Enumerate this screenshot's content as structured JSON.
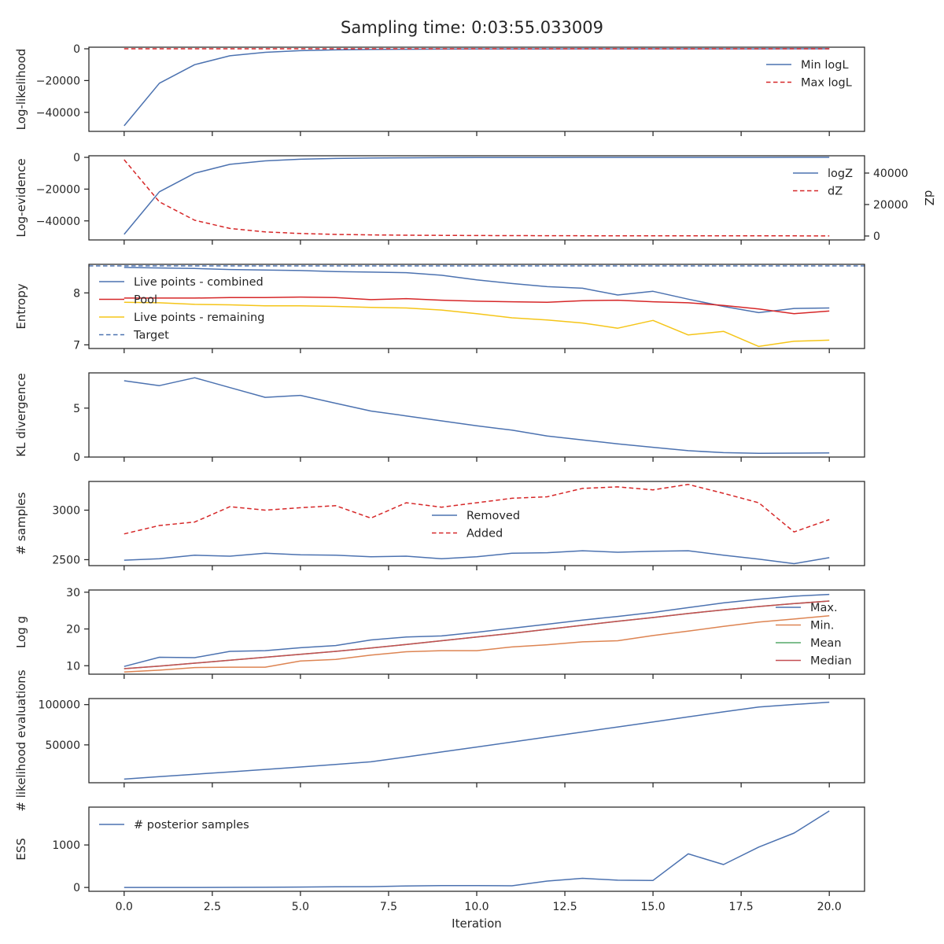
{
  "figure": {
    "title": "Sampling time: 0:03:55.033009",
    "xlabel": "Iteration",
    "xlim": [
      -1,
      21
    ],
    "xticks": [
      0,
      2.5,
      5,
      7.5,
      10,
      12.5,
      15,
      17.5,
      20
    ],
    "xtick_labels": [
      "0.0",
      "2.5",
      "5.0",
      "7.5",
      "10.0",
      "12.5",
      "15.0",
      "17.5",
      "20.0"
    ]
  },
  "colors": {
    "blue": "#4c72b0",
    "red": "#d62728",
    "yellow": "#f5c518",
    "orange": "#dd8452",
    "green": "#55a868",
    "brown": "#c44e52",
    "axis": "#262626"
  },
  "chart_data": [
    {
      "id": "loglikelihood",
      "type": "line",
      "ylabel": "Log-likelihood",
      "ylim": [
        -52000,
        1000
      ],
      "yticks": [
        0,
        -20000,
        -40000
      ],
      "ytick_labels": [
        "0",
        "−20000",
        "−40000"
      ],
      "legend_pos": "right-top",
      "x": [
        0,
        1,
        2,
        3,
        4,
        5,
        6,
        7,
        8,
        9,
        10,
        11,
        12,
        13,
        14,
        15,
        16,
        17,
        18,
        19,
        20
      ],
      "series": [
        {
          "name": "Min logL",
          "style": "solid",
          "color": "blue",
          "values": [
            -48500,
            -21700,
            -10000,
            -4400,
            -2200,
            -1200,
            -700,
            -450,
            -300,
            -200,
            -150,
            -110,
            -80,
            -60,
            -50,
            -40,
            -30,
            -25,
            -20,
            -15,
            -12
          ]
        },
        {
          "name": "Max logL",
          "style": "dashed",
          "color": "red",
          "values": [
            -10,
            -10,
            -10,
            -10,
            -10,
            -10,
            -10,
            -10,
            -10,
            -10,
            -10,
            -10,
            -10,
            -10,
            -10,
            -10,
            -10,
            -10,
            -10,
            -10,
            -10
          ]
        }
      ]
    },
    {
      "id": "logevidence",
      "type": "line",
      "ylabel": "Log-evidence",
      "y2label": "dZ",
      "ylim": [
        -52000,
        1000
      ],
      "yticks": [
        0,
        -20000,
        -40000
      ],
      "ytick_labels": [
        "0",
        "−20000",
        "−40000"
      ],
      "y2lim": [
        -2500,
        51000
      ],
      "y2ticks": [
        0,
        20000,
        40000
      ],
      "y2tick_labels": [
        "0",
        "20000",
        "40000"
      ],
      "legend_pos": "right-top",
      "x": [
        0,
        1,
        2,
        3,
        4,
        5,
        6,
        7,
        8,
        9,
        10,
        11,
        12,
        13,
        14,
        15,
        16,
        17,
        18,
        19,
        20
      ],
      "series": [
        {
          "name": "logZ",
          "style": "solid",
          "color": "blue",
          "axis": "left",
          "values": [
            -48500,
            -21700,
            -10000,
            -4400,
            -2200,
            -1200,
            -700,
            -450,
            -300,
            -200,
            -150,
            -110,
            -80,
            -60,
            -50,
            -40,
            -30,
            -25,
            -20,
            -15,
            -12
          ]
        },
        {
          "name": "dZ",
          "style": "dashed",
          "color": "red",
          "axis": "right",
          "values": [
            48500,
            21700,
            10000,
            4800,
            2600,
            1600,
            1000,
            700,
            500,
            400,
            300,
            250,
            200,
            170,
            150,
            130,
            110,
            100,
            90,
            80,
            70
          ]
        }
      ]
    },
    {
      "id": "entropy",
      "type": "line",
      "ylabel": "Entropy",
      "ylim": [
        6.93,
        8.55
      ],
      "yticks": [
        7,
        8
      ],
      "ytick_labels": [
        "7",
        "8"
      ],
      "legend_pos": "left-top",
      "x": [
        0,
        1,
        2,
        3,
        4,
        5,
        6,
        7,
        8,
        9,
        10,
        11,
        12,
        13,
        14,
        15,
        16,
        17,
        18,
        19,
        20
      ],
      "series": [
        {
          "name": "Live points - combined",
          "style": "solid",
          "color": "blue",
          "values": [
            8.49,
            8.48,
            8.47,
            8.45,
            8.44,
            8.43,
            8.41,
            8.4,
            8.39,
            8.34,
            8.25,
            8.18,
            8.12,
            8.09,
            7.96,
            8.03,
            7.88,
            7.74,
            7.62,
            7.7,
            7.71
          ]
        },
        {
          "name": "Pool",
          "style": "solid",
          "color": "red",
          "values": [
            7.9,
            7.9,
            7.9,
            7.91,
            7.91,
            7.92,
            7.91,
            7.87,
            7.89,
            7.86,
            7.84,
            7.83,
            7.82,
            7.85,
            7.86,
            7.83,
            7.81,
            7.76,
            7.69,
            7.6,
            7.65
          ]
        },
        {
          "name": "Live points - remaining",
          "style": "solid",
          "color": "yellow",
          "values": [
            7.82,
            7.81,
            7.78,
            7.77,
            7.75,
            7.75,
            7.74,
            7.72,
            7.71,
            7.67,
            7.6,
            7.52,
            7.48,
            7.42,
            7.32,
            7.47,
            7.19,
            7.26,
            6.97,
            7.07,
            7.09
          ]
        },
        {
          "name": "Target",
          "style": "dashed",
          "color": "blue",
          "values": [
            8.52,
            8.52,
            8.52,
            8.52,
            8.52,
            8.52,
            8.52,
            8.52,
            8.52,
            8.52,
            8.52,
            8.52,
            8.52,
            8.52,
            8.52,
            8.52,
            8.52,
            8.52,
            8.52,
            8.52,
            8.52
          ],
          "full_width": true
        }
      ]
    },
    {
      "id": "kl",
      "type": "line",
      "ylabel": "KL divergence",
      "ylim": [
        0,
        8.6
      ],
      "yticks": [
        0,
        5
      ],
      "ytick_labels": [
        "0",
        "5"
      ],
      "x": [
        0,
        1,
        2,
        3,
        4,
        5,
        6,
        7,
        8,
        9,
        10,
        11,
        12,
        13,
        14,
        15,
        16,
        17,
        18,
        19,
        20
      ],
      "series": [
        {
          "name": "",
          "style": "solid",
          "color": "blue",
          "values": [
            7.8,
            7.3,
            8.1,
            7.1,
            6.1,
            6.3,
            5.5,
            4.7,
            4.2,
            3.7,
            3.2,
            2.75,
            2.15,
            1.75,
            1.35,
            1.0,
            0.65,
            0.45,
            0.38,
            0.4,
            0.42
          ]
        }
      ]
    },
    {
      "id": "samples",
      "type": "line",
      "ylabel": "# samples",
      "ylim": [
        2440,
        3290
      ],
      "yticks": [
        2500,
        3000
      ],
      "ytick_labels": [
        "2500",
        "3000"
      ],
      "legend_pos": "center",
      "x": [
        0,
        1,
        2,
        3,
        4,
        5,
        6,
        7,
        8,
        9,
        10,
        11,
        12,
        13,
        14,
        15,
        16,
        17,
        18,
        19,
        20
      ],
      "series": [
        {
          "name": "Removed",
          "style": "solid",
          "color": "blue",
          "values": [
            2495,
            2510,
            2545,
            2535,
            2565,
            2550,
            2545,
            2530,
            2535,
            2510,
            2530,
            2565,
            2570,
            2590,
            2575,
            2585,
            2590,
            2545,
            2505,
            2460,
            2520
          ]
        },
        {
          "name": "Added",
          "style": "dashed",
          "color": "red",
          "values": [
            2760,
            2845,
            2880,
            3035,
            3000,
            3025,
            3045,
            2920,
            3075,
            3030,
            3075,
            3120,
            3135,
            3220,
            3235,
            3205,
            3260,
            3170,
            3075,
            2780,
            2905
          ]
        }
      ]
    },
    {
      "id": "logg",
      "type": "line",
      "ylabel": "Log g",
      "ylim": [
        7.7,
        30.6
      ],
      "yticks": [
        10,
        20,
        30
      ],
      "ytick_labels": [
        "10",
        "20",
        "30"
      ],
      "legend_pos": "right-top",
      "x": [
        0,
        1,
        2,
        3,
        4,
        5,
        6,
        7,
        8,
        9,
        10,
        11,
        12,
        13,
        14,
        15,
        16,
        17,
        18,
        19,
        20
      ],
      "series": [
        {
          "name": "Max.",
          "style": "solid",
          "color": "blue",
          "values": [
            9.8,
            12.3,
            12.2,
            13.9,
            14.1,
            14.9,
            15.5,
            17.0,
            17.8,
            18.1,
            19.1,
            20.2,
            21.3,
            22.4,
            23.4,
            24.5,
            25.8,
            27.1,
            28.1,
            28.9,
            29.4
          ]
        },
        {
          "name": "Min.",
          "style": "solid",
          "color": "orange",
          "values": [
            8.3,
            8.8,
            9.5,
            9.6,
            9.6,
            11.3,
            11.7,
            12.9,
            13.8,
            14.1,
            14.1,
            15.1,
            15.7,
            16.5,
            16.8,
            18.2,
            19.4,
            20.7,
            21.9,
            22.7,
            23.6
          ]
        },
        {
          "name": "Mean",
          "style": "solid",
          "color": "green",
          "values": [
            9.2,
            9.9,
            10.7,
            11.5,
            12.3,
            13.1,
            13.9,
            14.8,
            15.8,
            16.8,
            17.8,
            18.8,
            19.9,
            21.0,
            22.1,
            23.1,
            24.2,
            25.2,
            26.1,
            26.9,
            27.6
          ]
        },
        {
          "name": "Median",
          "style": "solid",
          "color": "brown",
          "values": [
            9.2,
            9.9,
            10.7,
            11.5,
            12.3,
            13.1,
            13.9,
            14.8,
            15.8,
            16.8,
            17.8,
            18.8,
            19.9,
            21.0,
            22.1,
            23.1,
            24.2,
            25.2,
            26.1,
            26.9,
            27.6
          ]
        }
      ]
    },
    {
      "id": "likelihood_evals",
      "type": "line",
      "ylabel": "# likelihood evaluations",
      "ylim": [
        3000,
        107500
      ],
      "yticks": [
        50000,
        100000
      ],
      "ytick_labels": [
        "50000",
        "100000"
      ],
      "x": [
        0,
        1,
        2,
        3,
        4,
        5,
        6,
        7,
        8,
        9,
        10,
        11,
        12,
        13,
        14,
        15,
        16,
        17,
        18,
        19,
        20
      ],
      "series": [
        {
          "name": "",
          "style": "solid",
          "color": "blue",
          "values": [
            7500,
            10500,
            13500,
            16500,
            19500,
            22500,
            25800,
            29000,
            35000,
            41200,
            47300,
            53500,
            59700,
            66000,
            72200,
            78500,
            84800,
            91000,
            97000,
            100200,
            103000
          ]
        }
      ]
    },
    {
      "id": "ess",
      "type": "line",
      "ylabel": "ESS",
      "ylim": [
        -90,
        1890
      ],
      "yticks": [
        0,
        1000
      ],
      "ytick_labels": [
        "0",
        "1000"
      ],
      "legend_pos": "left-top",
      "x": [
        0,
        1,
        2,
        3,
        4,
        5,
        6,
        7,
        8,
        9,
        10,
        11,
        12,
        13,
        14,
        15,
        16,
        17,
        18,
        19,
        20
      ],
      "series": [
        {
          "name": "# posterior samples",
          "style": "solid",
          "color": "blue",
          "values": [
            0,
            0,
            0,
            2,
            5,
            10,
            15,
            20,
            35,
            45,
            45,
            40,
            150,
            215,
            170,
            165,
            790,
            540,
            950,
            1280,
            1800
          ]
        }
      ]
    }
  ]
}
